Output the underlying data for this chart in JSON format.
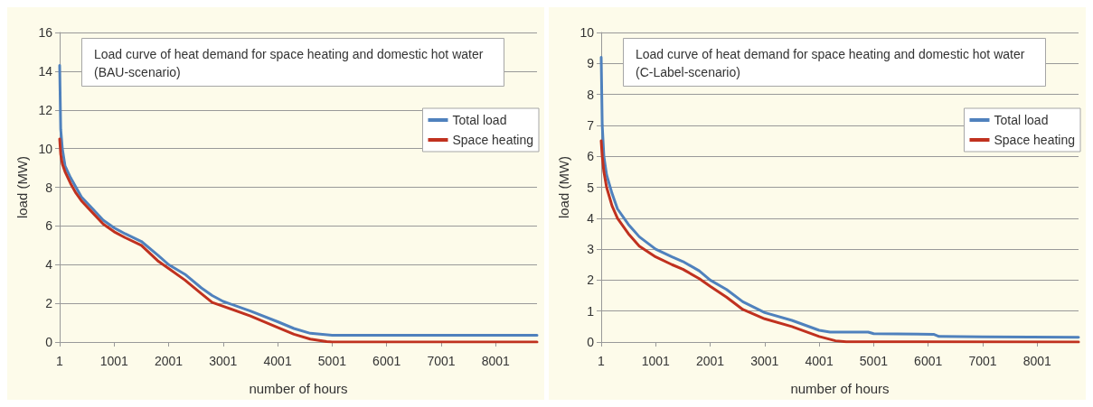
{
  "chart_data": [
    {
      "type": "line",
      "title": "Load curve of heat demand for space heating and domestic hot water (BAU-scenario)",
      "xlabel": "number of hours",
      "ylabel": "load (MW)",
      "xlim": [
        1,
        8760
      ],
      "xticks": [
        1,
        1001,
        2001,
        3001,
        4001,
        5001,
        6001,
        7001,
        8001
      ],
      "ylim": [
        0,
        16
      ],
      "yticks": [
        0,
        2,
        4,
        6,
        8,
        10,
        12,
        14,
        16
      ],
      "grid": "y",
      "legend": "top right",
      "marker": "none",
      "series": [
        {
          "name": "Total load",
          "color": "#4f81bd",
          "x": [
            1,
            20,
            50,
            100,
            200,
            300,
            400,
            600,
            800,
            1001,
            1200,
            1500,
            1800,
            2001,
            2300,
            2600,
            2800,
            3001,
            3500,
            4001,
            4300,
            4600,
            5001,
            8760
          ],
          "values": [
            14.3,
            11,
            10,
            9.1,
            8.5,
            8,
            7.5,
            6.9,
            6.3,
            5.9,
            5.6,
            5.2,
            4.5,
            4.0,
            3.5,
            2.8,
            2.4,
            2.1,
            1.6,
            1.05,
            0.7,
            0.45,
            0.35,
            0.35
          ]
        },
        {
          "name": "Space heating",
          "color": "#c0311f",
          "x": [
            1,
            20,
            50,
            100,
            200,
            300,
            400,
            600,
            800,
            1001,
            1200,
            1500,
            1800,
            2001,
            2300,
            2600,
            2800,
            3001,
            3500,
            4001,
            4300,
            4600,
            4900,
            5001,
            8760
          ],
          "values": [
            10.5,
            9.7,
            9.2,
            8.8,
            8.2,
            7.7,
            7.3,
            6.7,
            6.1,
            5.7,
            5.4,
            5.0,
            4.2,
            3.8,
            3.2,
            2.5,
            2.05,
            1.85,
            1.35,
            0.75,
            0.4,
            0.15,
            0.02,
            0,
            0
          ]
        }
      ]
    },
    {
      "type": "line",
      "title": "Load curve of heat demand for space heating and domestic hot water (C-Label-scenario)",
      "xlabel": "number of hours",
      "ylabel": "load (MW)",
      "xlim": [
        1,
        8760
      ],
      "xticks": [
        1,
        1001,
        2001,
        3001,
        4001,
        5001,
        6001,
        7001,
        8001
      ],
      "ylim": [
        0,
        10
      ],
      "yticks": [
        0,
        1,
        2,
        3,
        4,
        5,
        6,
        7,
        8,
        9,
        10
      ],
      "grid": "y",
      "legend": "top right",
      "marker": "none",
      "series": [
        {
          "name": "Total load",
          "color": "#4f81bd",
          "x": [
            1,
            20,
            50,
            100,
            200,
            300,
            500,
            700,
            1001,
            1300,
            1500,
            1800,
            2001,
            2300,
            2600,
            3001,
            3500,
            4001,
            4200,
            4900,
            5001,
            6100,
            6200,
            7001,
            8760
          ],
          "values": [
            9.2,
            7,
            6,
            5.4,
            4.8,
            4.3,
            3.8,
            3.4,
            3.0,
            2.75,
            2.6,
            2.3,
            2.0,
            1.7,
            1.3,
            0.95,
            0.7,
            0.38,
            0.32,
            0.32,
            0.27,
            0.25,
            0.18,
            0.17,
            0.15
          ]
        },
        {
          "name": "Space heating",
          "color": "#c0311f",
          "x": [
            1,
            20,
            50,
            100,
            200,
            300,
            500,
            700,
            1001,
            1300,
            1500,
            1800,
            2001,
            2300,
            2600,
            3001,
            3500,
            4001,
            4300,
            4500,
            8760
          ],
          "values": [
            6.5,
            6,
            5.5,
            5.0,
            4.4,
            4.0,
            3.5,
            3.1,
            2.75,
            2.5,
            2.35,
            2.05,
            1.8,
            1.45,
            1.05,
            0.75,
            0.5,
            0.18,
            0.04,
            0.01,
            0
          ]
        }
      ]
    }
  ]
}
